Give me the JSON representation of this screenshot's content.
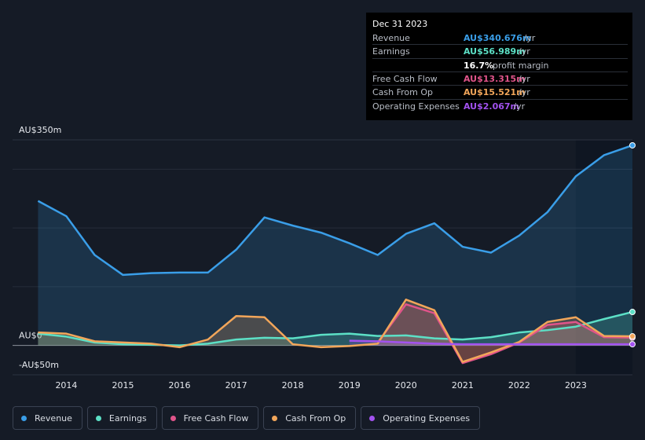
{
  "chart_data": {
    "type": "line",
    "x": [
      2013.5,
      2014,
      2014.5,
      2015,
      2015.5,
      2016,
      2016.5,
      2017,
      2017.5,
      2018,
      2018.5,
      2019,
      2019.5,
      2020,
      2020.5,
      2021,
      2021.5,
      2022,
      2022.5,
      2023,
      2023.5,
      2024
    ],
    "xlim": [
      2013.05,
      2024.0
    ],
    "xticks": [
      2014,
      2015,
      2016,
      2017,
      2018,
      2019,
      2020,
      2021,
      2022,
      2023
    ],
    "ylim": [
      -50,
      350
    ],
    "yticks": [
      {
        "value": 350,
        "label": "AU$350m"
      },
      {
        "value": 0,
        "label": "AU$0"
      },
      {
        "value": -50,
        "label": "-AU$50m"
      }
    ],
    "gridlines": [
      100,
      200,
      300
    ],
    "highlight_from": 2023,
    "series": [
      {
        "name": "Revenue",
        "color": "#3a9ee8",
        "values": [
          246,
          220,
          154,
          120,
          123,
          124,
          124,
          163,
          218,
          204,
          192,
          174,
          154,
          190,
          208,
          168,
          158,
          187,
          227,
          288,
          324,
          340.676
        ]
      },
      {
        "name": "Earnings",
        "color": "#5ce0c6",
        "values": [
          20,
          15,
          5,
          2,
          1,
          0,
          3,
          10,
          13,
          12,
          18,
          20,
          16,
          17,
          12,
          10,
          14,
          22,
          26,
          32,
          45,
          56.989
        ]
      },
      {
        "name": "Free Cash Flow",
        "color": "#e0548a",
        "values": [
          null,
          null,
          null,
          null,
          null,
          null,
          null,
          null,
          null,
          null,
          null,
          null,
          5,
          70,
          55,
          -30,
          -15,
          5,
          35,
          40,
          14,
          13.315
        ]
      },
      {
        "name": "Cash From Op",
        "color": "#f2a65a",
        "values": [
          22,
          20,
          7,
          5,
          3,
          -3,
          10,
          50,
          48,
          2,
          -3,
          -1,
          3,
          78,
          60,
          -28,
          -12,
          6,
          40,
          48,
          16,
          15.521
        ]
      },
      {
        "name": "Operating Expenses",
        "color": "#a352f0",
        "values": [
          null,
          null,
          null,
          null,
          null,
          null,
          null,
          null,
          null,
          null,
          null,
          8,
          7,
          5,
          3,
          2,
          2,
          2,
          2,
          2,
          2,
          2.067
        ]
      }
    ]
  },
  "tooltip": {
    "date": "Dec 31 2023",
    "rows": [
      {
        "label": "Revenue",
        "value": "AU$340.676m",
        "unit": "/yr",
        "color": "#3a9ee8"
      },
      {
        "label": "Earnings",
        "value": "AU$56.989m",
        "unit": "/yr",
        "color": "#5ce0c6"
      },
      {
        "value": "16.7%",
        "unit": "profit margin",
        "color": "#ffffff"
      },
      {
        "label": "Free Cash Flow",
        "value": "AU$13.315m",
        "unit": "/yr",
        "color": "#e0548a"
      },
      {
        "label": "Cash From Op",
        "value": "AU$15.521m",
        "unit": "/yr",
        "color": "#f2a65a"
      },
      {
        "label": "Operating Expenses",
        "value": "AU$2.067m",
        "unit": "/yr",
        "color": "#a352f0"
      }
    ]
  }
}
